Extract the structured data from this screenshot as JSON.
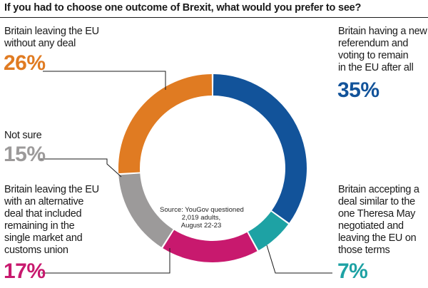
{
  "chart_data": {
    "type": "pie",
    "style": "donut",
    "title": "If you had to choose one outcome of Brexit, what would you prefer to see?",
    "source": [
      "Source: YouGov questioned",
      "2,019 adults,",
      "August 22-23"
    ],
    "slices": [
      {
        "key": "remain",
        "label_lines": [
          "Britain having a new",
          "referendum and",
          "voting to remain",
          "in the EU after all"
        ],
        "value": 35,
        "value_label": "35%",
        "color": "#12539a"
      },
      {
        "key": "may",
        "label_lines": [
          "Britain accepting a",
          "deal similar to the",
          "one Theresa May",
          "negotiated and",
          "leaving the EU on",
          "those terms"
        ],
        "value": 7,
        "value_label": "7%",
        "color": "#1ea2a4"
      },
      {
        "key": "alternative",
        "label_lines": [
          "Britain leaving the EU",
          "with an alternative",
          "deal that included",
          "remaining in the",
          "single market and",
          "customs union"
        ],
        "value": 17,
        "value_label": "17%",
        "color": "#c8196e"
      },
      {
        "key": "notsure",
        "label_lines": [
          "Not sure"
        ],
        "value": 15,
        "value_label": "15%",
        "color": "#9c9a9a"
      },
      {
        "key": "nodeal",
        "label_lines": [
          "Britain leaving the EU",
          "without any deal"
        ],
        "value": 26,
        "value_label": "26%",
        "color": "#e07b22"
      }
    ]
  }
}
